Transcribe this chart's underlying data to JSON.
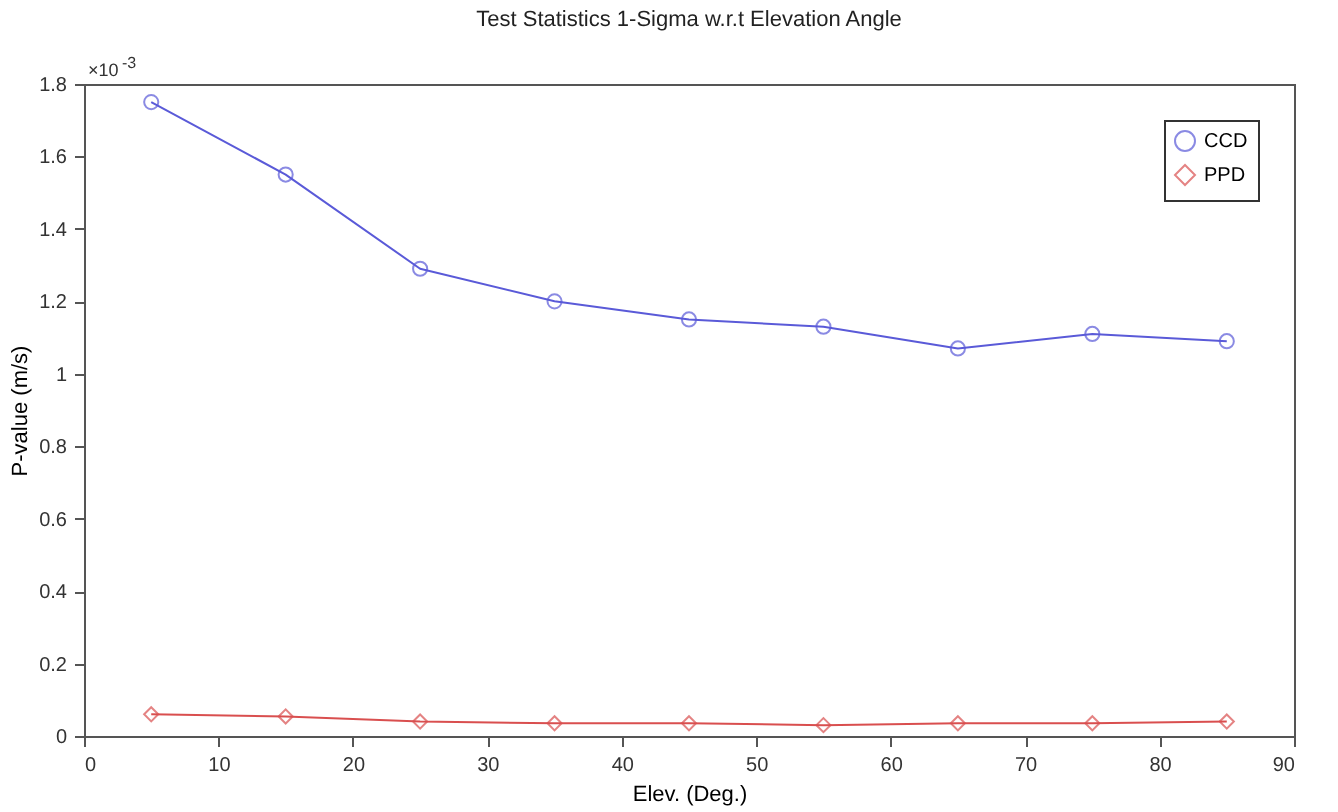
{
  "chart_data": {
    "type": "line",
    "title": "Test Statistics 1-Sigma w.r.t Elevation Angle",
    "xlabel": "Elev. (Deg.)",
    "ylabel": "P-value (m/s)",
    "annotations": [
      "×10$^{-3}$"
    ],
    "x": [
      5,
      15,
      25,
      35,
      45,
      55,
      65,
      75,
      85
    ],
    "series": [
      {
        "name": "CCD",
        "color": "#5a5ad8",
        "marker": "circle",
        "values": [
          1.75,
          1.55,
          1.29,
          1.2,
          1.15,
          1.13,
          1.07,
          1.11,
          1.09
        ]
      },
      {
        "name": "PPD",
        "color": "#d94f4f",
        "marker": "diamond",
        "values": [
          0.06,
          0.054,
          0.04,
          0.035,
          0.035,
          0.03,
          0.035,
          0.035,
          0.04
        ]
      }
    ],
    "xlim": [
      0,
      90
    ],
    "xticks": [
      0,
      10,
      20,
      30,
      40,
      50,
      60,
      70,
      80,
      90
    ],
    "ylim": [
      0,
      1.8
    ],
    "yticks": [
      0,
      0.2,
      0.4,
      0.6,
      0.8,
      1,
      1.2,
      1.4,
      1.6,
      1.8
    ],
    "grid": false,
    "legend": "top right",
    "line_style": "solid"
  }
}
